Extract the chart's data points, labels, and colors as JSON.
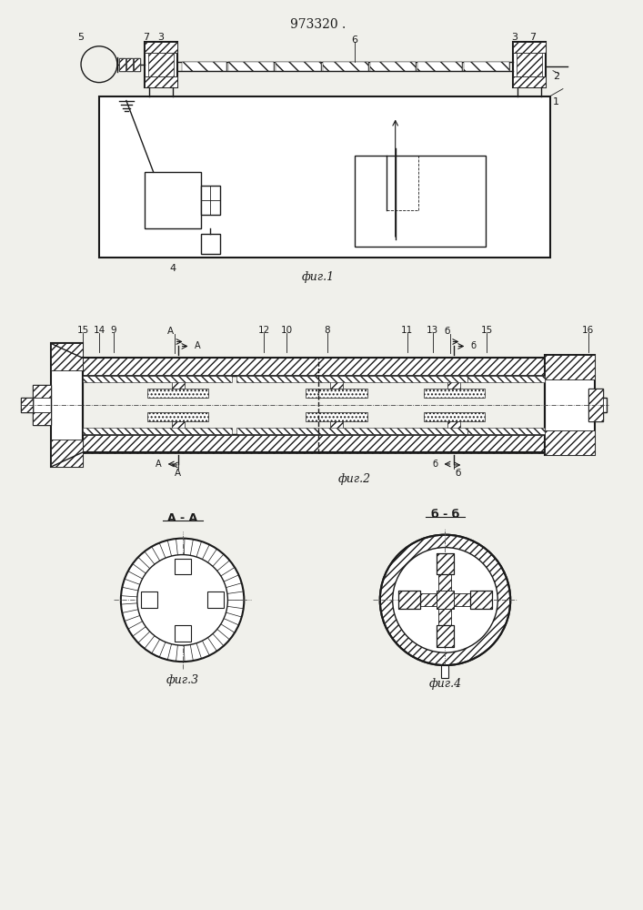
{
  "title": "973320",
  "bg_color": "#f0f0eb",
  "line_color": "#1a1a1a",
  "fig1_label": "фиг.1",
  "fig2_label": "фиг.2",
  "fig3_label": "фиг.3",
  "fig4_label": "фиг.4",
  "aa_label": "A - A",
  "bb_label": "б - б"
}
